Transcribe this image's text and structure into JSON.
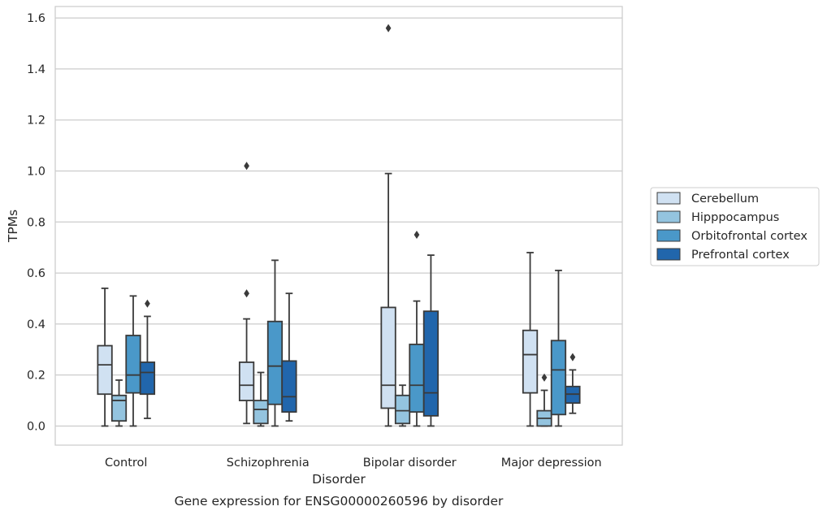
{
  "chart_data": {
    "type": "box",
    "title": "Gene expression for ENSG00000260596 by disorder",
    "xlabel": "Disorder",
    "ylabel": "TPMs",
    "ylim": [
      -0.075,
      1.645
    ],
    "yticks": [
      "0.0",
      "0.2",
      "0.4",
      "0.6",
      "0.8",
      "1.0",
      "1.2",
      "1.4",
      "1.6"
    ],
    "grid": "horizontal",
    "legend_position": "right",
    "categories": [
      "Control",
      "Schizophrenia",
      "Bipolar disorder",
      "Major depression"
    ],
    "series": [
      {
        "name": "Cerebellum",
        "color": "#d0e1f2",
        "boxes": [
          {
            "whislo": 0.0,
            "q1": 0.125,
            "med": 0.24,
            "q3": 0.315,
            "whishi": 0.54,
            "fliers": []
          },
          {
            "whislo": 0.01,
            "q1": 0.1,
            "med": 0.16,
            "q3": 0.25,
            "whishi": 0.42,
            "fliers": [
              0.52,
              1.02
            ]
          },
          {
            "whislo": 0.0,
            "q1": 0.07,
            "med": 0.16,
            "q3": 0.465,
            "whishi": 0.99,
            "fliers": [
              1.56
            ]
          },
          {
            "whislo": 0.0,
            "q1": 0.13,
            "med": 0.28,
            "q3": 0.375,
            "whishi": 0.68,
            "fliers": []
          }
        ]
      },
      {
        "name": "Hipppocampus",
        "color": "#94c4df",
        "boxes": [
          {
            "whislo": 0.0,
            "q1": 0.02,
            "med": 0.1,
            "q3": 0.12,
            "whishi": 0.18,
            "fliers": []
          },
          {
            "whislo": 0.0,
            "q1": 0.01,
            "med": 0.065,
            "q3": 0.1,
            "whishi": 0.21,
            "fliers": []
          },
          {
            "whislo": 0.0,
            "q1": 0.01,
            "med": 0.06,
            "q3": 0.12,
            "whishi": 0.16,
            "fliers": []
          },
          {
            "whislo": 0.0,
            "q1": 0.0,
            "med": 0.03,
            "q3": 0.06,
            "whishi": 0.14,
            "fliers": [
              0.19
            ]
          }
        ]
      },
      {
        "name": "Orbitofrontal cortex",
        "color": "#4a98c9",
        "boxes": [
          {
            "whislo": 0.0,
            "q1": 0.13,
            "med": 0.2,
            "q3": 0.355,
            "whishi": 0.51,
            "fliers": []
          },
          {
            "whislo": 0.0,
            "q1": 0.085,
            "med": 0.235,
            "q3": 0.41,
            "whishi": 0.65,
            "fliers": []
          },
          {
            "whislo": 0.0,
            "q1": 0.055,
            "med": 0.16,
            "q3": 0.32,
            "whishi": 0.49,
            "fliers": [
              0.75
            ]
          },
          {
            "whislo": 0.0,
            "q1": 0.045,
            "med": 0.22,
            "q3": 0.335,
            "whishi": 0.61,
            "fliers": []
          }
        ]
      },
      {
        "name": "Prefrontal cortex",
        "color": "#2166ac",
        "boxes": [
          {
            "whislo": 0.03,
            "q1": 0.125,
            "med": 0.21,
            "q3": 0.25,
            "whishi": 0.43,
            "fliers": [
              0.48
            ]
          },
          {
            "whislo": 0.02,
            "q1": 0.055,
            "med": 0.115,
            "q3": 0.255,
            "whishi": 0.52,
            "fliers": []
          },
          {
            "whislo": 0.0,
            "q1": 0.04,
            "med": 0.13,
            "q3": 0.45,
            "whishi": 0.67,
            "fliers": []
          },
          {
            "whislo": 0.05,
            "q1": 0.09,
            "med": 0.125,
            "q3": 0.155,
            "whishi": 0.22,
            "fliers": [
              0.27
            ]
          }
        ]
      }
    ]
  }
}
